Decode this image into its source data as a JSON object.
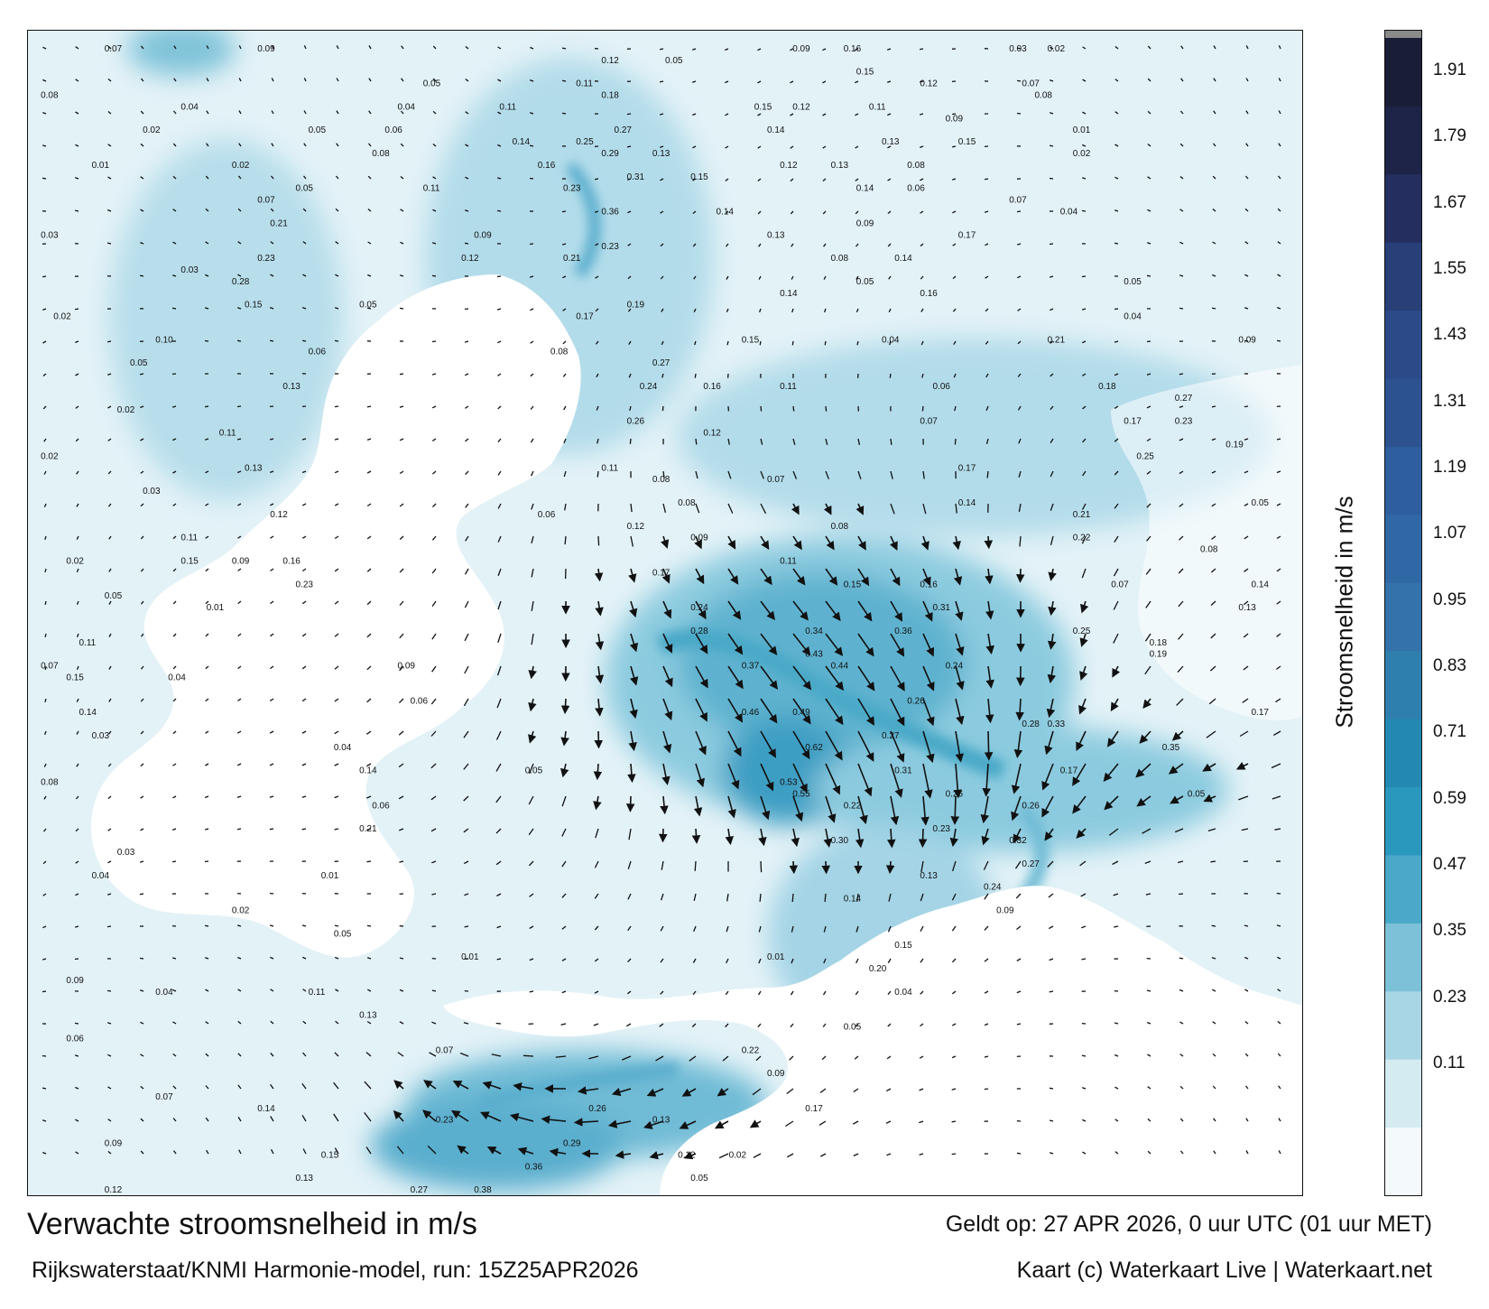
{
  "map": {
    "title": "Verwachte stroomsnelheid in m/s",
    "subtitle": "Rijkswaterstaat/KNMI Harmonie-model, run: 15Z25APR2026",
    "valid_time": "Geldt op: 27 APR 2026, 0 uur UTC (01 uur MET)",
    "credit": "Kaart (c) Waterkaart Live | Waterkaart.net",
    "colorbar_label": "Stroomsnelheid in m/s",
    "colorbar_ticks": [
      "1.91",
      "1.79",
      "1.67",
      "1.55",
      "1.43",
      "1.31",
      "1.19",
      "1.07",
      "0.95",
      "0.83",
      "0.71",
      "0.59",
      "0.47",
      "0.35",
      "0.23",
      "0.11"
    ],
    "colorbar_colors": [
      "#f4f9fb",
      "#d4ebf2",
      "#a9d6e5",
      "#7cc1d7",
      "#4aa9c8",
      "#2a97bd",
      "#2389b3",
      "#2f7fae",
      "#3372aa",
      "#3068a6",
      "#2f5e9e",
      "#2c5290",
      "#2c4a88",
      "#283f78",
      "#242f60",
      "#1e2447",
      "#1a1d36"
    ],
    "colorbar_top_color": "#8a8a8a",
    "speed_labels": [
      {
        "t": "0.07",
        "lon": 0.06,
        "lat": 0.01
      },
      {
        "t": "0.09",
        "lon": 0.18,
        "lat": 0.01
      },
      {
        "t": "0.12",
        "lon": 0.45,
        "lat": 0.02
      },
      {
        "t": "0.05",
        "lon": 0.5,
        "lat": 0.02
      },
      {
        "t": "0.09",
        "lon": 0.6,
        "lat": 0.01
      },
      {
        "t": "0.16",
        "lon": 0.64,
        "lat": 0.01
      },
      {
        "t": "0.03",
        "lon": 0.77,
        "lat": 0.01
      },
      {
        "t": "0.02",
        "lon": 0.8,
        "lat": 0.01
      },
      {
        "t": "0.08",
        "lon": 0.01,
        "lat": 0.05
      },
      {
        "t": "0.05",
        "lon": 0.31,
        "lat": 0.04
      },
      {
        "t": "0.11",
        "lon": 0.43,
        "lat": 0.04
      },
      {
        "t": "0.15",
        "lon": 0.65,
        "lat": 0.03
      },
      {
        "t": "0.12",
        "lon": 0.7,
        "lat": 0.04
      },
      {
        "t": "0.07",
        "lon": 0.78,
        "lat": 0.04
      },
      {
        "t": "0.04",
        "lon": 0.12,
        "lat": 0.06
      },
      {
        "t": "0.04",
        "lon": 0.29,
        "lat": 0.06
      },
      {
        "t": "0.11",
        "lon": 0.37,
        "lat": 0.06
      },
      {
        "t": "0.18",
        "lon": 0.45,
        "lat": 0.05
      },
      {
        "t": "0.15",
        "lon": 0.57,
        "lat": 0.06
      },
      {
        "t": "0.12",
        "lon": 0.6,
        "lat": 0.06
      },
      {
        "t": "0.11",
        "lon": 0.66,
        "lat": 0.06
      },
      {
        "t": "0.09",
        "lon": 0.72,
        "lat": 0.07
      },
      {
        "t": "0.08",
        "lon": 0.79,
        "lat": 0.05
      },
      {
        "t": "0.02",
        "lon": 0.09,
        "lat": 0.08
      },
      {
        "t": "0.05",
        "lon": 0.22,
        "lat": 0.08
      },
      {
        "t": "0.06",
        "lon": 0.28,
        "lat": 0.08
      },
      {
        "t": "0.14",
        "lon": 0.38,
        "lat": 0.09
      },
      {
        "t": "0.25",
        "lon": 0.43,
        "lat": 0.09
      },
      {
        "t": "0.27",
        "lon": 0.46,
        "lat": 0.08
      },
      {
        "t": "0.14",
        "lon": 0.58,
        "lat": 0.08
      },
      {
        "t": "0.13",
        "lon": 0.67,
        "lat": 0.09
      },
      {
        "t": "0.15",
        "lon": 0.73,
        "lat": 0.09
      },
      {
        "t": "0.01",
        "lon": 0.82,
        "lat": 0.08
      },
      {
        "t": "0.01",
        "lon": 0.05,
        "lat": 0.11
      },
      {
        "t": "0.02",
        "lon": 0.16,
        "lat": 0.11
      },
      {
        "t": "0.08",
        "lon": 0.27,
        "lat": 0.1
      },
      {
        "t": "0.16",
        "lon": 0.4,
        "lat": 0.11
      },
      {
        "t": "0.29",
        "lon": 0.45,
        "lat": 0.1
      },
      {
        "t": "0.13",
        "lon": 0.49,
        "lat": 0.1
      },
      {
        "t": "0.12",
        "lon": 0.59,
        "lat": 0.11
      },
      {
        "t": "0.13",
        "lon": 0.63,
        "lat": 0.11
      },
      {
        "t": "0.08",
        "lon": 0.69,
        "lat": 0.11
      },
      {
        "t": "0.02",
        "lon": 0.82,
        "lat": 0.1
      },
      {
        "t": "0.05",
        "lon": 0.21,
        "lat": 0.13
      },
      {
        "t": "0.11",
        "lon": 0.31,
        "lat": 0.13
      },
      {
        "t": "0.23",
        "lon": 0.42,
        "lat": 0.13
      },
      {
        "t": "0.31",
        "lon": 0.47,
        "lat": 0.12
      },
      {
        "t": "0.15",
        "lon": 0.52,
        "lat": 0.12
      },
      {
        "t": "0.14",
        "lon": 0.65,
        "lat": 0.13
      },
      {
        "t": "0.06",
        "lon": 0.69,
        "lat": 0.13
      },
      {
        "t": "0.07",
        "lon": 0.77,
        "lat": 0.14
      },
      {
        "t": "0.03",
        "lon": 0.01,
        "lat": 0.17
      },
      {
        "t": "0.07",
        "lon": 0.18,
        "lat": 0.14
      },
      {
        "t": "0.21",
        "lon": 0.19,
        "lat": 0.16
      },
      {
        "t": "0.09",
        "lon": 0.35,
        "lat": 0.17
      },
      {
        "t": "0.36",
        "lon": 0.45,
        "lat": 0.15
      },
      {
        "t": "0.14",
        "lon": 0.54,
        "lat": 0.15
      },
      {
        "t": "0.13",
        "lon": 0.58,
        "lat": 0.17
      },
      {
        "t": "0.09",
        "lon": 0.65,
        "lat": 0.16
      },
      {
        "t": "0.17",
        "lon": 0.73,
        "lat": 0.17
      },
      {
        "t": "0.04",
        "lon": 0.81,
        "lat": 0.15
      },
      {
        "t": "0.03",
        "lon": 0.12,
        "lat": 0.2
      },
      {
        "t": "0.28",
        "lon": 0.16,
        "lat": 0.21
      },
      {
        "t": "0.23",
        "lon": 0.18,
        "lat": 0.19
      },
      {
        "t": "0.12",
        "lon": 0.34,
        "lat": 0.19
      },
      {
        "t": "0.21",
        "lon": 0.42,
        "lat": 0.19
      },
      {
        "t": "0.23",
        "lon": 0.45,
        "lat": 0.18
      },
      {
        "t": "0.08",
        "lon": 0.63,
        "lat": 0.19
      },
      {
        "t": "0.14",
        "lon": 0.68,
        "lat": 0.19
      },
      {
        "t": "0.05",
        "lon": 0.86,
        "lat": 0.21
      },
      {
        "t": "0.02",
        "lon": 0.02,
        "lat": 0.24
      },
      {
        "t": "0.15",
        "lon": 0.17,
        "lat": 0.23
      },
      {
        "t": "0.05",
        "lon": 0.26,
        "lat": 0.23
      },
      {
        "t": "0.17",
        "lon": 0.43,
        "lat": 0.24
      },
      {
        "t": "0.19",
        "lon": 0.47,
        "lat": 0.23
      },
      {
        "t": "0.14",
        "lon": 0.59,
        "lat": 0.22
      },
      {
        "t": "0.05",
        "lon": 0.65,
        "lat": 0.21
      },
      {
        "t": "0.16",
        "lon": 0.7,
        "lat": 0.22
      },
      {
        "t": "0.04",
        "lon": 0.86,
        "lat": 0.24
      },
      {
        "t": "0.10",
        "lon": 0.1,
        "lat": 0.26
      },
      {
        "t": "0.06",
        "lon": 0.22,
        "lat": 0.27
      },
      {
        "t": "0.08",
        "lon": 0.41,
        "lat": 0.27
      },
      {
        "t": "0.27",
        "lon": 0.49,
        "lat": 0.28
      },
      {
        "t": "0.15",
        "lon": 0.56,
        "lat": 0.26
      },
      {
        "t": "0.04",
        "lon": 0.67,
        "lat": 0.26
      },
      {
        "t": "0.21",
        "lon": 0.8,
        "lat": 0.26
      },
      {
        "t": "0.09",
        "lon": 0.95,
        "lat": 0.26
      },
      {
        "t": "0.05",
        "lon": 0.08,
        "lat": 0.28
      },
      {
        "t": "0.13",
        "lon": 0.2,
        "lat": 0.3
      },
      {
        "t": "0.24",
        "lon": 0.48,
        "lat": 0.3
      },
      {
        "t": "0.16",
        "lon": 0.53,
        "lat": 0.3
      },
      {
        "t": "0.11",
        "lon": 0.59,
        "lat": 0.3
      },
      {
        "t": "0.06",
        "lon": 0.71,
        "lat": 0.3
      },
      {
        "t": "0.18",
        "lon": 0.84,
        "lat": 0.3
      },
      {
        "t": "0.27",
        "lon": 0.9,
        "lat": 0.31
      },
      {
        "t": "0.02",
        "lon": 0.07,
        "lat": 0.32
      },
      {
        "t": "0.11",
        "lon": 0.15,
        "lat": 0.34
      },
      {
        "t": "0.26",
        "lon": 0.47,
        "lat": 0.33
      },
      {
        "t": "0.12",
        "lon": 0.53,
        "lat": 0.34
      },
      {
        "t": "0.07",
        "lon": 0.7,
        "lat": 0.33
      },
      {
        "t": "0.17",
        "lon": 0.86,
        "lat": 0.33
      },
      {
        "t": "0.23",
        "lon": 0.9,
        "lat": 0.33
      },
      {
        "t": "0.02",
        "lon": 0.01,
        "lat": 0.36
      },
      {
        "t": "0.13",
        "lon": 0.17,
        "lat": 0.37
      },
      {
        "t": "0.11",
        "lon": 0.45,
        "lat": 0.37
      },
      {
        "t": "0.08",
        "lon": 0.49,
        "lat": 0.38
      },
      {
        "t": "0.07",
        "lon": 0.58,
        "lat": 0.38
      },
      {
        "t": "0.17",
        "lon": 0.73,
        "lat": 0.37
      },
      {
        "t": "0.25",
        "lon": 0.87,
        "lat": 0.36
      },
      {
        "t": "0.19",
        "lon": 0.94,
        "lat": 0.35
      },
      {
        "t": "0.03",
        "lon": 0.09,
        "lat": 0.39
      },
      {
        "t": "0.12",
        "lon": 0.19,
        "lat": 0.41
      },
      {
        "t": "0.06",
        "lon": 0.4,
        "lat": 0.41
      },
      {
        "t": "0.08",
        "lon": 0.51,
        "lat": 0.4
      },
      {
        "t": "0.14",
        "lon": 0.73,
        "lat": 0.4
      },
      {
        "t": "0.21",
        "lon": 0.82,
        "lat": 0.41
      },
      {
        "t": "0.05",
        "lon": 0.96,
        "lat": 0.4
      },
      {
        "t": "0.11",
        "lon": 0.12,
        "lat": 0.43
      },
      {
        "t": "0.12",
        "lon": 0.47,
        "lat": 0.42
      },
      {
        "t": "0.09",
        "lon": 0.52,
        "lat": 0.43
      },
      {
        "t": "0.08",
        "lon": 0.63,
        "lat": 0.42
      },
      {
        "t": "0.22",
        "lon": 0.82,
        "lat": 0.43
      },
      {
        "t": "0.08",
        "lon": 0.92,
        "lat": 0.44
      },
      {
        "t": "0.02",
        "lon": 0.03,
        "lat": 0.45
      },
      {
        "t": "0.15",
        "lon": 0.12,
        "lat": 0.45
      },
      {
        "t": "0.09",
        "lon": 0.16,
        "lat": 0.45
      },
      {
        "t": "0.16",
        "lon": 0.2,
        "lat": 0.45
      },
      {
        "t": "0.17",
        "lon": 0.49,
        "lat": 0.46
      },
      {
        "t": "0.11",
        "lon": 0.59,
        "lat": 0.45
      },
      {
        "t": "0.16",
        "lon": 0.7,
        "lat": 0.47
      },
      {
        "t": "0.07",
        "lon": 0.85,
        "lat": 0.47
      },
      {
        "t": "0.14",
        "lon": 0.96,
        "lat": 0.47
      },
      {
        "t": "0.05",
        "lon": 0.06,
        "lat": 0.48
      },
      {
        "t": "0.23",
        "lon": 0.21,
        "lat": 0.47
      },
      {
        "t": "0.24",
        "lon": 0.52,
        "lat": 0.49
      },
      {
        "t": "0.15",
        "lon": 0.64,
        "lat": 0.47
      },
      {
        "t": "0.31",
        "lon": 0.71,
        "lat": 0.49
      },
      {
        "t": "0.13",
        "lon": 0.95,
        "lat": 0.49
      },
      {
        "t": "0.11",
        "lon": 0.04,
        "lat": 0.52
      },
      {
        "t": "0.01",
        "lon": 0.14,
        "lat": 0.49
      },
      {
        "t": "0.28",
        "lon": 0.52,
        "lat": 0.51
      },
      {
        "t": "0.34",
        "lon": 0.61,
        "lat": 0.51
      },
      {
        "t": "0.36",
        "lon": 0.68,
        "lat": 0.51
      },
      {
        "t": "0.25",
        "lon": 0.82,
        "lat": 0.51
      },
      {
        "t": "0.18",
        "lon": 0.88,
        "lat": 0.52
      },
      {
        "t": "0.07",
        "lon": 0.01,
        "lat": 0.54
      },
      {
        "t": "0.15",
        "lon": 0.03,
        "lat": 0.55
      },
      {
        "t": "0.04",
        "lon": 0.11,
        "lat": 0.55
      },
      {
        "t": "0.09",
        "lon": 0.29,
        "lat": 0.54
      },
      {
        "t": "0.37",
        "lon": 0.56,
        "lat": 0.54
      },
      {
        "t": "0.43",
        "lon": 0.61,
        "lat": 0.53
      },
      {
        "t": "0.44",
        "lon": 0.63,
        "lat": 0.54
      },
      {
        "t": "0.24",
        "lon": 0.72,
        "lat": 0.54
      },
      {
        "t": "0.19",
        "lon": 0.88,
        "lat": 0.53
      },
      {
        "t": "0.14",
        "lon": 0.04,
        "lat": 0.58
      },
      {
        "t": "0.06",
        "lon": 0.3,
        "lat": 0.57
      },
      {
        "t": "0.46",
        "lon": 0.56,
        "lat": 0.58
      },
      {
        "t": "0.49",
        "lon": 0.6,
        "lat": 0.58
      },
      {
        "t": "0.26",
        "lon": 0.69,
        "lat": 0.57
      },
      {
        "t": "0.28",
        "lon": 0.78,
        "lat": 0.59
      },
      {
        "t": "0.17",
        "lon": 0.96,
        "lat": 0.58
      },
      {
        "t": "0.03",
        "lon": 0.05,
        "lat": 0.6
      },
      {
        "t": "0.04",
        "lon": 0.24,
        "lat": 0.61
      },
      {
        "t": "0.62",
        "lon": 0.61,
        "lat": 0.61
      },
      {
        "t": "0.27",
        "lon": 0.67,
        "lat": 0.6
      },
      {
        "t": "0.33",
        "lon": 0.8,
        "lat": 0.59
      },
      {
        "t": "0.35",
        "lon": 0.89,
        "lat": 0.61
      },
      {
        "t": "0.08",
        "lon": 0.01,
        "lat": 0.64
      },
      {
        "t": "0.14",
        "lon": 0.26,
        "lat": 0.63
      },
      {
        "t": "0.05",
        "lon": 0.39,
        "lat": 0.63
      },
      {
        "t": "0.53",
        "lon": 0.59,
        "lat": 0.64
      },
      {
        "t": "0.31",
        "lon": 0.68,
        "lat": 0.63
      },
      {
        "t": "0.17",
        "lon": 0.81,
        "lat": 0.63
      },
      {
        "t": "0.05",
        "lon": 0.91,
        "lat": 0.65
      },
      {
        "t": "0.06",
        "lon": 0.27,
        "lat": 0.66
      },
      {
        "t": "0.55",
        "lon": 0.6,
        "lat": 0.65
      },
      {
        "t": "0.22",
        "lon": 0.64,
        "lat": 0.66
      },
      {
        "t": "0.26",
        "lon": 0.72,
        "lat": 0.65
      },
      {
        "t": "0.26",
        "lon": 0.78,
        "lat": 0.66
      },
      {
        "t": "0.21",
        "lon": 0.26,
        "lat": 0.68
      },
      {
        "t": "0.30",
        "lon": 0.63,
        "lat": 0.69
      },
      {
        "t": "0.23",
        "lon": 0.71,
        "lat": 0.68
      },
      {
        "t": "0.32",
        "lon": 0.77,
        "lat": 0.69
      },
      {
        "t": "0.03",
        "lon": 0.07,
        "lat": 0.7
      },
      {
        "t": "0.27",
        "lon": 0.78,
        "lat": 0.71
      },
      {
        "t": "0.13",
        "lon": 0.7,
        "lat": 0.72
      },
      {
        "t": "0.04",
        "lon": 0.05,
        "lat": 0.72
      },
      {
        "t": "0.01",
        "lon": 0.23,
        "lat": 0.72
      },
      {
        "t": "0.14",
        "lon": 0.64,
        "lat": 0.74
      },
      {
        "t": "0.24",
        "lon": 0.75,
        "lat": 0.73
      },
      {
        "t": "0.02",
        "lon": 0.16,
        "lat": 0.75
      },
      {
        "t": "0.09",
        "lon": 0.76,
        "lat": 0.75
      },
      {
        "t": "0.05",
        "lon": 0.24,
        "lat": 0.77
      },
      {
        "t": "0.15",
        "lon": 0.68,
        "lat": 0.78
      },
      {
        "t": "0.01",
        "lon": 0.34,
        "lat": 0.79
      },
      {
        "t": "0.09",
        "lon": 0.03,
        "lat": 0.81
      },
      {
        "t": "0.04",
        "lon": 0.1,
        "lat": 0.82
      },
      {
        "t": "0.01",
        "lon": 0.58,
        "lat": 0.79
      },
      {
        "t": "0.20",
        "lon": 0.66,
        "lat": 0.8
      },
      {
        "t": "0.04",
        "lon": 0.68,
        "lat": 0.82
      },
      {
        "t": "0.11",
        "lon": 0.22,
        "lat": 0.82
      },
      {
        "t": "0.05",
        "lon": 0.64,
        "lat": 0.85
      },
      {
        "t": "0.06",
        "lon": 0.03,
        "lat": 0.86
      },
      {
        "t": "0.13",
        "lon": 0.26,
        "lat": 0.84
      },
      {
        "t": "0.07",
        "lon": 0.32,
        "lat": 0.87
      },
      {
        "t": "0.22",
        "lon": 0.56,
        "lat": 0.87
      },
      {
        "t": "0.09",
        "lon": 0.58,
        "lat": 0.89
      },
      {
        "t": "0.07",
        "lon": 0.1,
        "lat": 0.91
      },
      {
        "t": "0.14",
        "lon": 0.18,
        "lat": 0.92
      },
      {
        "t": "0.23",
        "lon": 0.32,
        "lat": 0.93
      },
      {
        "t": "0.26",
        "lon": 0.44,
        "lat": 0.92
      },
      {
        "t": "0.13",
        "lon": 0.49,
        "lat": 0.93
      },
      {
        "t": "0.17",
        "lon": 0.61,
        "lat": 0.92
      },
      {
        "t": "0.09",
        "lon": 0.06,
        "lat": 0.95
      },
      {
        "t": "0.15",
        "lon": 0.23,
        "lat": 0.96
      },
      {
        "t": "0.29",
        "lon": 0.42,
        "lat": 0.95
      },
      {
        "t": "0.12",
        "lon": 0.51,
        "lat": 0.96
      },
      {
        "t": "0.02",
        "lon": 0.55,
        "lat": 0.96
      },
      {
        "t": "0.13",
        "lon": 0.21,
        "lat": 0.98
      },
      {
        "t": "0.36",
        "lon": 0.39,
        "lat": 0.97
      },
      {
        "t": "0.05",
        "lon": 0.52,
        "lat": 0.98
      },
      {
        "t": "0.12",
        "lon": 0.06,
        "lat": 0.99
      },
      {
        "t": "0.27",
        "lon": 0.3,
        "lat": 0.99
      },
      {
        "t": "0.38",
        "lon": 0.35,
        "lat": 0.99
      }
    ]
  }
}
